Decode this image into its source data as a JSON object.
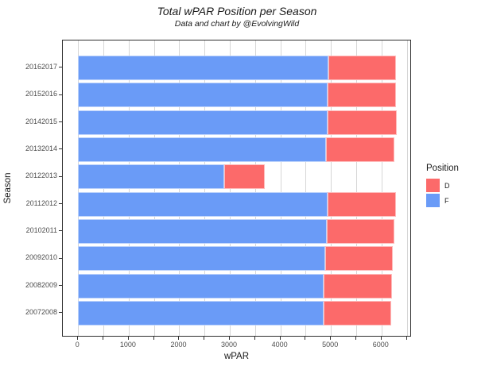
{
  "title": "Total wPAR Position per Season",
  "subtitle": "Data and chart by @EvolvingWild",
  "axes": {
    "x": {
      "label": "wPAR",
      "tick_labels": [
        "0",
        "1000",
        "2000",
        "3000",
        "4000",
        "5000",
        "6000"
      ],
      "tick_values": [
        0,
        1000,
        2000,
        3000,
        4000,
        5000,
        6000
      ],
      "minor_step": 500,
      "max": 6500
    },
    "y": {
      "label": "Season"
    }
  },
  "legend": {
    "title": "Position",
    "items": [
      {
        "label": "D",
        "color": "#FC6A6A"
      },
      {
        "label": "F",
        "color": "#6A9BF7"
      }
    ]
  },
  "colors": {
    "grid": "#D6D6D6",
    "panel_border": "#2E2E2E",
    "tick_text": "#4D4D4D",
    "bar_stroke": "#FFFFFF",
    "background": "#FFFFFF"
  },
  "chart_data": {
    "type": "bar",
    "orientation": "horizontal",
    "stacked": true,
    "title": "Total wPAR Position per Season",
    "subtitle": "Data and chart by @EvolvingWild",
    "xlabel": "wPAR",
    "ylabel": "Season",
    "xlim": [
      0,
      6500
    ],
    "grid": true,
    "legend_title": "Position",
    "legend_position": "right",
    "categories": [
      "20162017",
      "20152016",
      "20142015",
      "20132014",
      "20122013",
      "20112012",
      "20102011",
      "20092010",
      "20082009",
      "20072008"
    ],
    "series": [
      {
        "name": "F",
        "color": "#6A9BF7",
        "values": [
          4950,
          4940,
          4940,
          4900,
          2890,
          4940,
          4920,
          4890,
          4860,
          4860
        ]
      },
      {
        "name": "D",
        "color": "#FC6A6A",
        "values": [
          1330,
          1350,
          1370,
          1360,
          800,
          1340,
          1340,
          1340,
          1350,
          1330
        ]
      }
    ],
    "stack_order": [
      "F",
      "D"
    ]
  }
}
